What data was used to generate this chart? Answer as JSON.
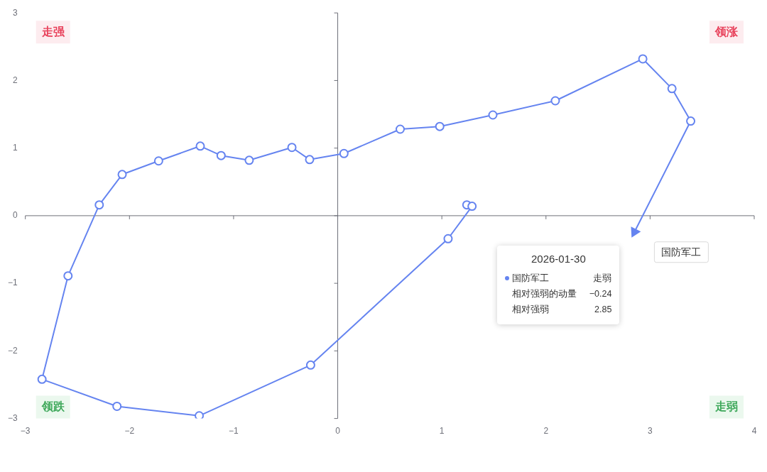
{
  "chart_data": {
    "type": "line",
    "xlim": [
      -3,
      4
    ],
    "xticks": [
      -3,
      -2,
      -1,
      0,
      1,
      2,
      3,
      4
    ],
    "ylim": [
      -3,
      3
    ],
    "yticks": [
      -3,
      -2,
      -1,
      0,
      1,
      2,
      3
    ],
    "marker": "circle",
    "line_style": "solid",
    "series": [
      {
        "name": "国防军工",
        "color": "#6584f0",
        "x": [
          1.24,
          1.29,
          1.06,
          -0.26,
          -1.33,
          -2.12,
          -2.84,
          -2.59,
          -2.29,
          -2.07,
          -1.72,
          -1.32,
          -1.12,
          -0.85,
          -0.44,
          -0.27,
          0.06,
          0.6,
          0.98,
          1.49,
          2.09,
          2.93,
          3.21,
          3.39,
          2.85
        ],
        "values": [
          0.16,
          0.14,
          -0.34,
          -2.21,
          -2.96,
          -2.82,
          -2.42,
          -0.89,
          0.16,
          0.61,
          0.81,
          1.03,
          0.89,
          0.82,
          1.01,
          0.83,
          0.92,
          1.28,
          1.32,
          1.49,
          1.7,
          2.32,
          1.88,
          1.4,
          -0.24
        ]
      }
    ],
    "annotations": [
      "走强",
      "领涨",
      "领跌",
      "走弱",
      "2026-01-30",
      "走弱",
      "相对强弱的动量",
      "−0.24",
      "相对强弱",
      "2.85"
    ]
  }
}
